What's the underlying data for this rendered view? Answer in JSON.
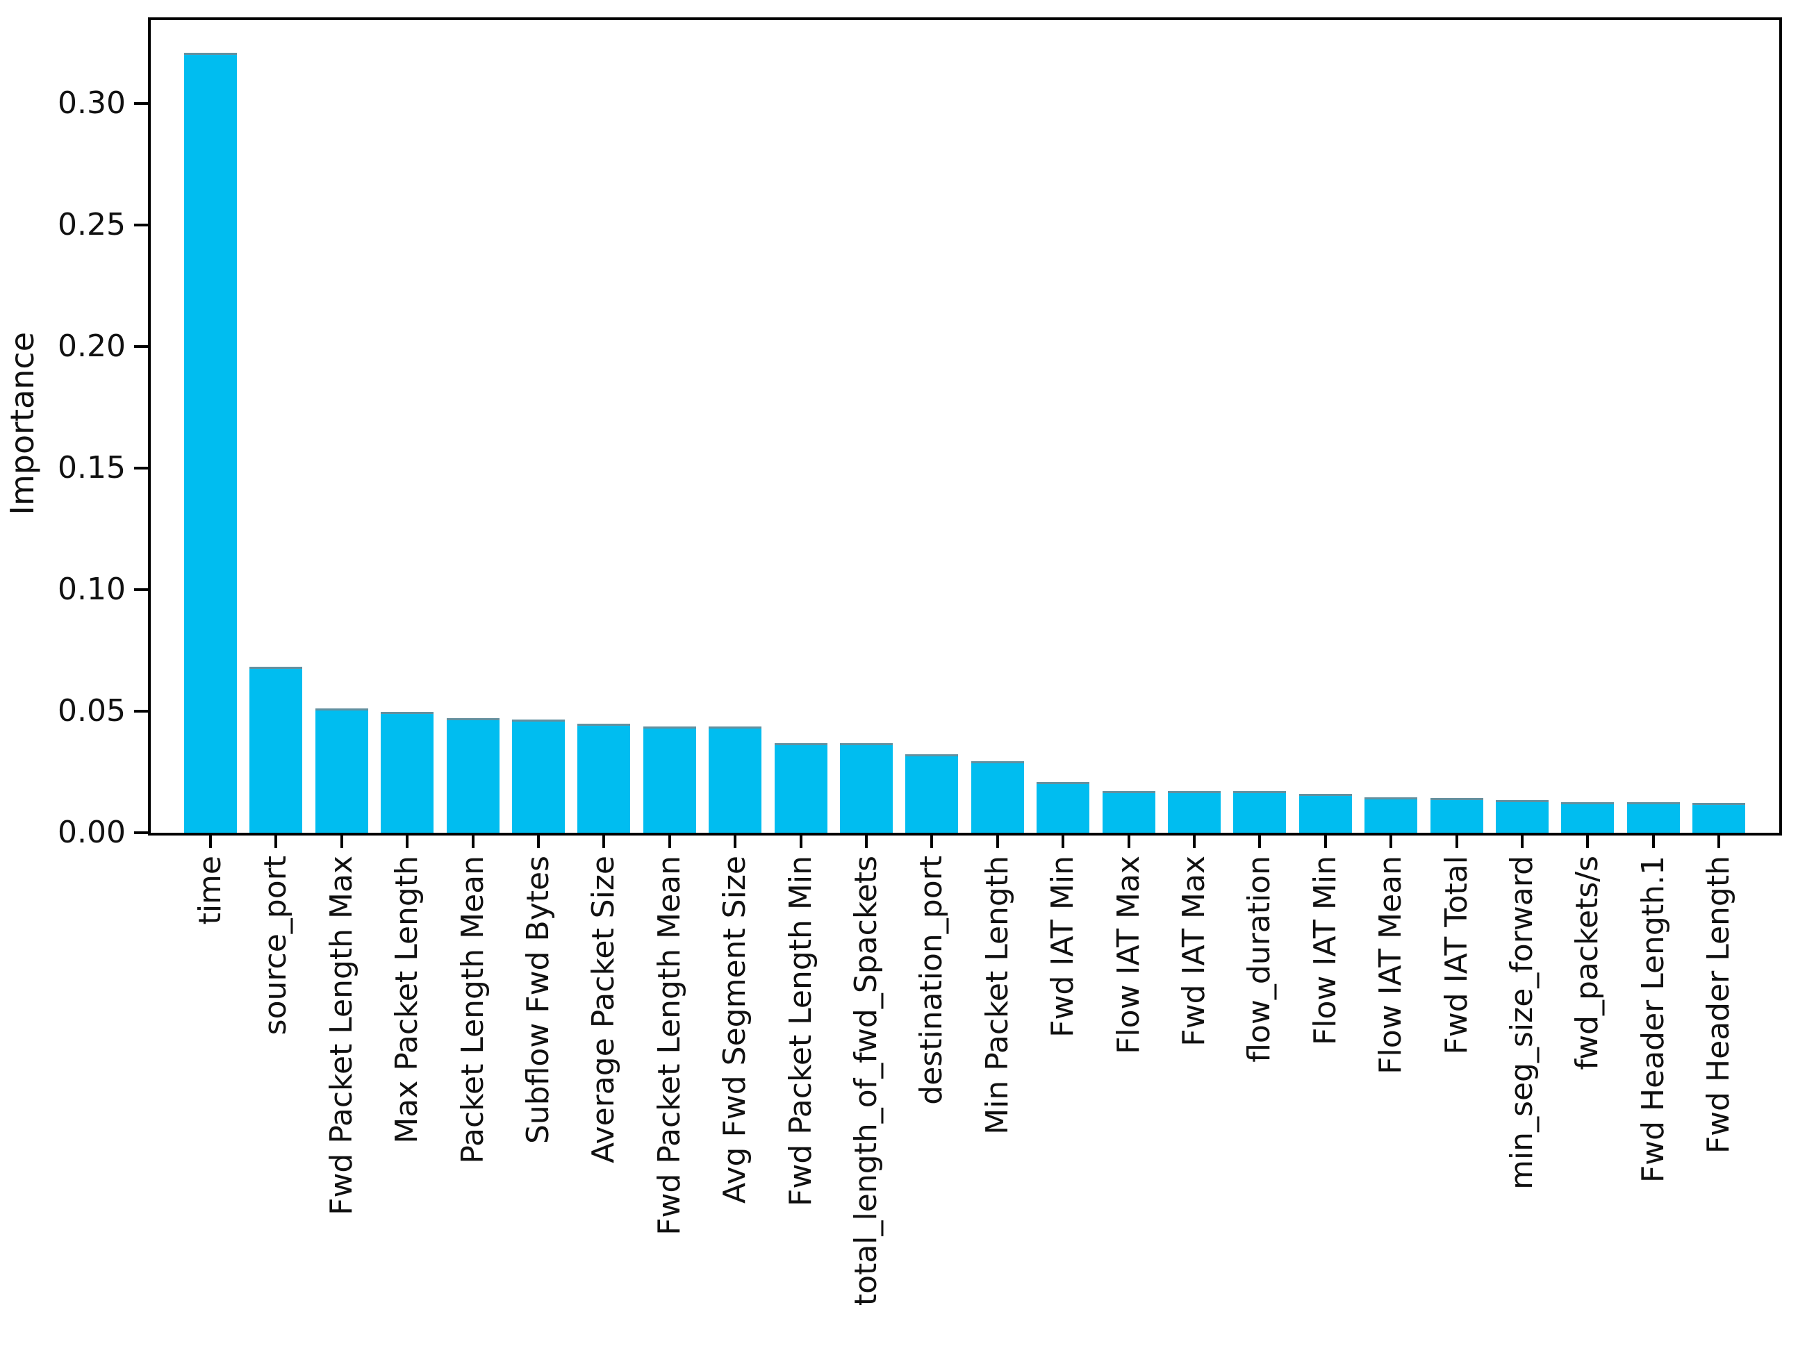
{
  "figure": {
    "background": "#ffffff",
    "text_color": "#111111",
    "spine_color": "#000000"
  },
  "chart_data": {
    "type": "bar",
    "title": "",
    "xlabel": "",
    "ylabel": "Importance",
    "categories": [
      "time",
      "source_port",
      "Fwd Packet Length Max",
      "Max Packet Length",
      "Packet Length Mean",
      "Subflow Fwd Bytes",
      "Average Packet Size",
      "Fwd Packet Length Mean",
      "Avg Fwd Segment Size",
      "Fwd Packet Length Min",
      "total_length_of_fwd_Spackets",
      "destination_port",
      "Min Packet Length",
      "Fwd IAT Min",
      "Flow IAT Max",
      "Fwd IAT Max",
      "flow_duration",
      "Flow IAT Min",
      "Flow IAT Mean",
      "Fwd IAT Total",
      "min_seg_size_forward",
      "fwd_packets/s",
      "Fwd Header Length.1",
      "Fwd Header Length"
    ],
    "values": [
      0.32,
      0.0674,
      0.0503,
      0.0489,
      0.0463,
      0.0457,
      0.044,
      0.0429,
      0.0429,
      0.036,
      0.036,
      0.0314,
      0.0286,
      0.02,
      0.0163,
      0.0163,
      0.0163,
      0.015,
      0.0137,
      0.0133,
      0.0127,
      0.0117,
      0.0116,
      0.0113
    ],
    "yticks": [
      "0.00",
      "0.05",
      "0.10",
      "0.15",
      "0.20",
      "0.25",
      "0.30"
    ],
    "ytick_values": [
      0.0,
      0.05,
      0.1,
      0.15,
      0.2,
      0.25,
      0.3
    ],
    "ylim": [
      0,
      0.336
    ],
    "grid": false,
    "legend_position": "none",
    "bar_color": "#00bdf0",
    "bar_edge_color": "#628fa0",
    "bar_edge_top_color": "#63909f"
  }
}
